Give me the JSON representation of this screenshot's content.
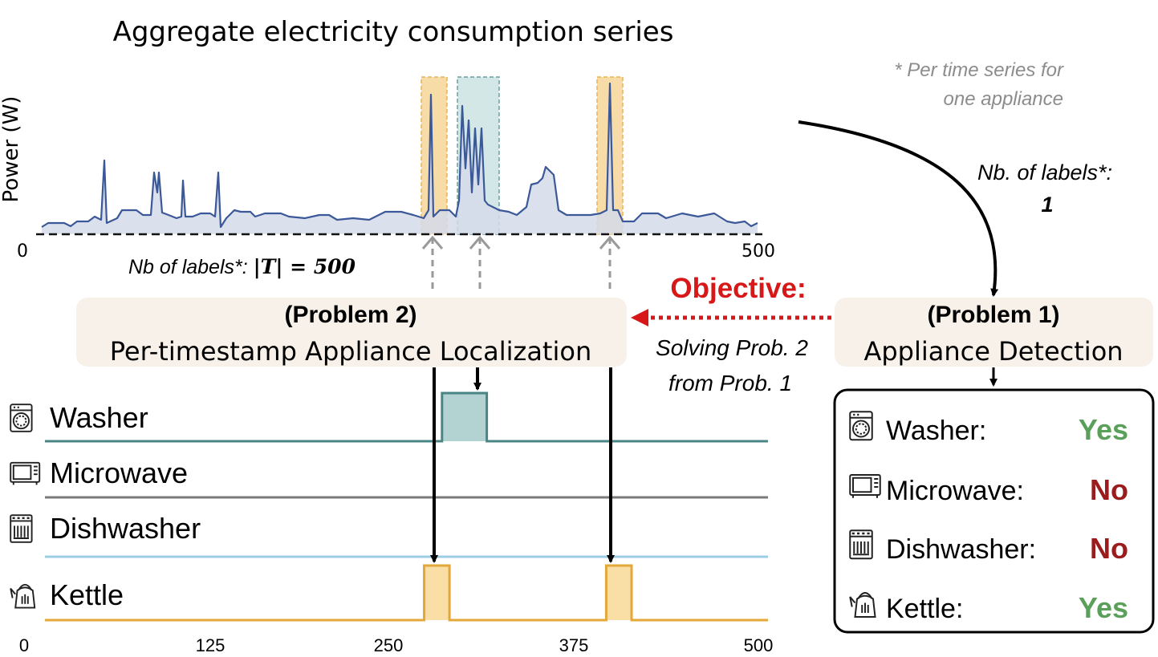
{
  "top_chart": {
    "title": "Aggregate electricity consumption series",
    "ylabel": "Power (W)",
    "x_start_label": "0",
    "x_end_label": "500",
    "labels_note_prefix": "Nb of labels*: ",
    "labels_note_formula": "|T| = 500"
  },
  "footnote": {
    "line1": "* Per time series for",
    "line2": "one appliance"
  },
  "problem1": {
    "title": "(Problem 1)",
    "subtitle": "Appliance Detection",
    "labels_line1": "Nb. of labels*:",
    "labels_line2": "1",
    "results": [
      {
        "name": "Washer:",
        "value": "Yes",
        "icon": "washer-icon",
        "color": "#5aa05a"
      },
      {
        "name": "Microwave:",
        "value": "No",
        "icon": "microwave-icon",
        "color": "#9b1c1c"
      },
      {
        "name": "Dishwasher:",
        "value": "No",
        "icon": "dishwasher-icon",
        "color": "#9b1c1c"
      },
      {
        "name": "Kettle:",
        "value": "Yes",
        "icon": "kettle-icon",
        "color": "#5aa05a"
      }
    ]
  },
  "problem2": {
    "title": "(Problem 2)",
    "subtitle": "Per-timestamp Appliance Localization"
  },
  "objective": {
    "label": "Objective:",
    "line1": "Solving Prob. 2",
    "line2": "from Prob. 1",
    "color": "#d81818"
  },
  "appliances": [
    {
      "name": "Washer",
      "icon": "washer-icon",
      "color": "#4a8585",
      "fill": "#b3d3d3",
      "segments": [
        [
          280,
          310
        ]
      ]
    },
    {
      "name": "Microwave",
      "icon": "microwave-icon",
      "color": "#7a7a7a",
      "fill": "#d8d8d8",
      "segments": []
    },
    {
      "name": "Dishwasher",
      "icon": "dishwasher-icon",
      "color": "#9dcde5",
      "fill": "#d8ecf5",
      "segments": []
    },
    {
      "name": "Kettle",
      "icon": "kettle-icon",
      "color": "#e3a73a",
      "fill": "#f9dfa6",
      "segments": [
        [
          268,
          285
        ],
        [
          390,
          407
        ]
      ]
    }
  ],
  "bottom_axis": {
    "ticks": [
      "0",
      "125",
      "250",
      "375",
      "500"
    ]
  },
  "colors": {
    "aggregate_line": "#3b5899",
    "aggregate_fill": "#d5dbea",
    "kettle_highlight": "#f6d69a",
    "washer_highlight": "#c9e2e2"
  }
}
